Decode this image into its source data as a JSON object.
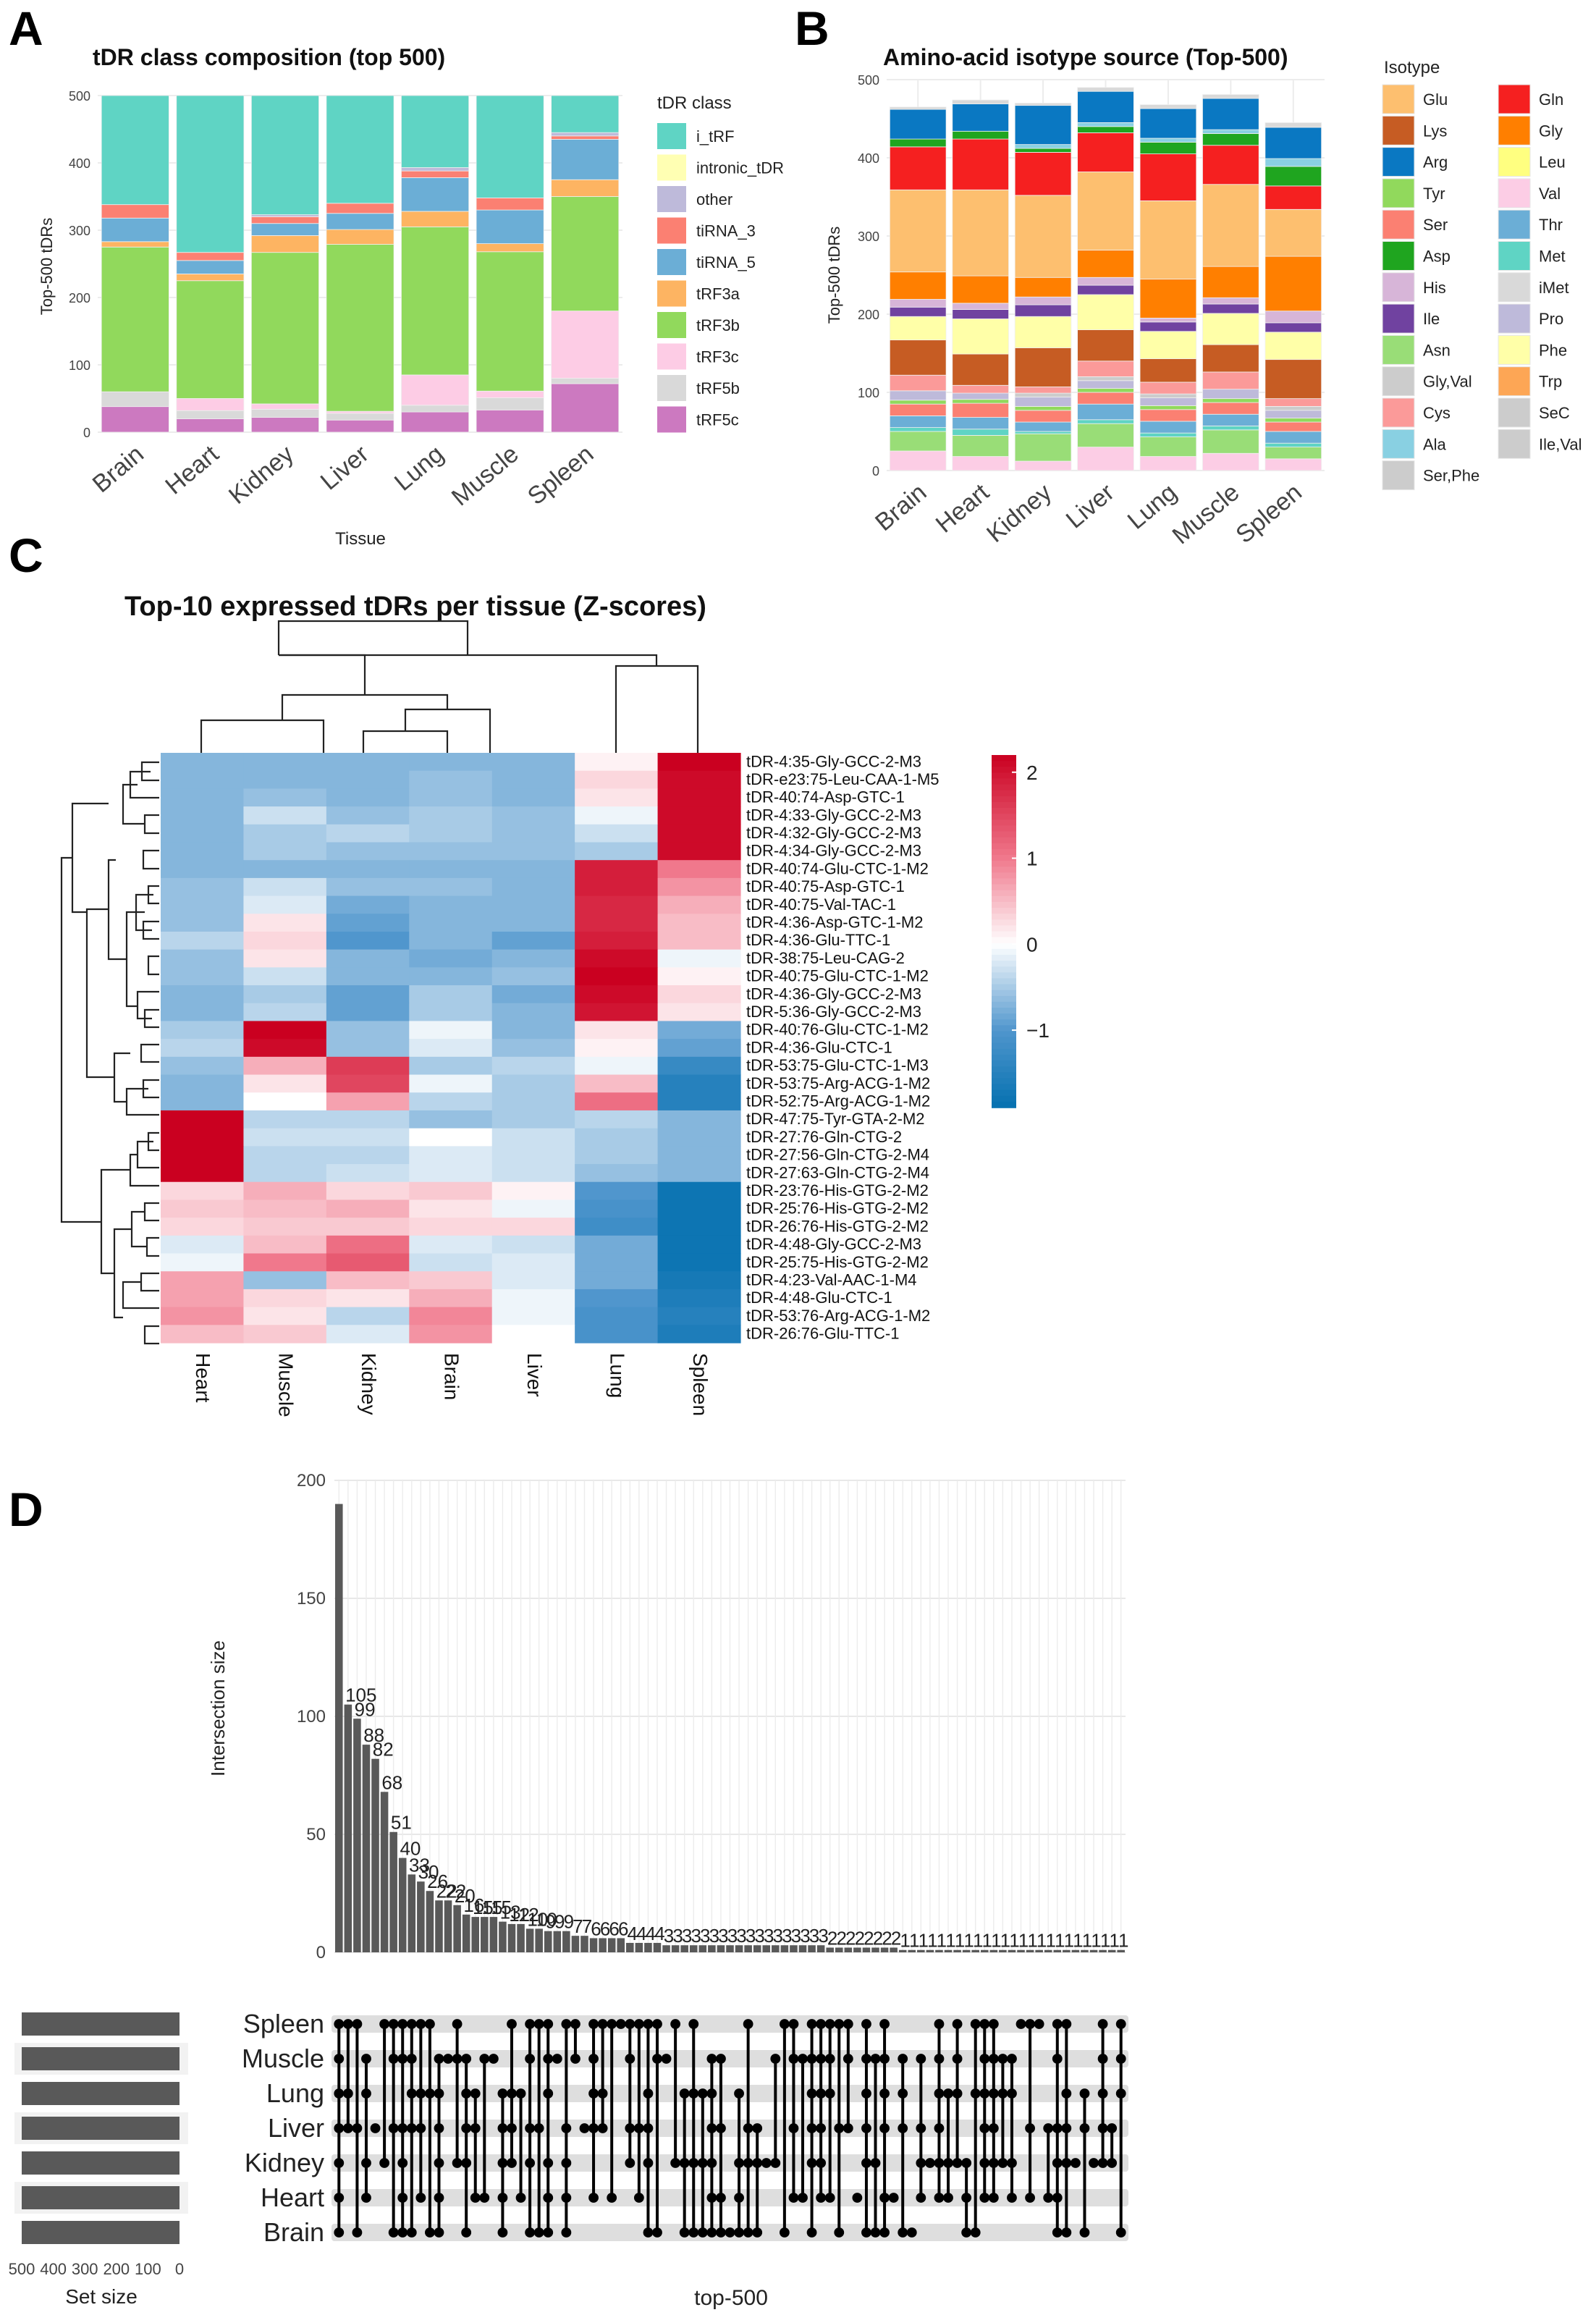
{
  "panels": {
    "a": "A",
    "b": "B",
    "c": "C",
    "d": "D"
  },
  "chart_data": [
    {
      "type": "bar",
      "id": "A",
      "title": "tDR class composition (top 500)",
      "xlabel": "Tissue",
      "ylabel": "Top-500 tDRs",
      "ylim": [
        0,
        500
      ],
      "yticks": [
        0,
        100,
        200,
        300,
        400,
        500
      ],
      "stacked": true,
      "legend_title": "tDR class",
      "legend_position": "right",
      "categories": [
        "Brain",
        "Heart",
        "Kidney",
        "Liver",
        "Lung",
        "Muscle",
        "Spleen"
      ],
      "series": [
        {
          "name": "tRF5c",
          "color": "#CC79C0",
          "values": [
            38,
            20,
            22,
            18,
            30,
            33,
            72
          ]
        },
        {
          "name": "tRF5b",
          "color": "#D9D9D9",
          "values": [
            22,
            12,
            12,
            10,
            10,
            18,
            8
          ]
        },
        {
          "name": "tRF3c",
          "color": "#FDCCE5",
          "values": [
            0,
            18,
            8,
            3,
            45,
            10,
            100
          ]
        },
        {
          "name": "tRF3b",
          "color": "#91D95C",
          "values": [
            215,
            175,
            225,
            248,
            220,
            207,
            170
          ]
        },
        {
          "name": "tRF3a",
          "color": "#FDB462",
          "values": [
            8,
            10,
            25,
            22,
            23,
            12,
            25
          ]
        },
        {
          "name": "tiRNA_5",
          "color": "#6BAED6",
          "values": [
            35,
            20,
            18,
            24,
            50,
            50,
            60
          ]
        },
        {
          "name": "tiRNA_3",
          "color": "#FB8072",
          "values": [
            20,
            12,
            10,
            15,
            10,
            18,
            5
          ]
        },
        {
          "name": "other",
          "color": "#BEBADA",
          "values": [
            0,
            0,
            3,
            0,
            5,
            0,
            5
          ]
        },
        {
          "name": "intronic_tDR",
          "color": "#FFFFB3",
          "values": [
            0,
            0,
            0,
            0,
            0,
            0,
            0
          ]
        },
        {
          "name": "i_tRF",
          "color": "#5FD4C4",
          "values": [
            162,
            233,
            177,
            160,
            107,
            152,
            55
          ]
        }
      ]
    },
    {
      "type": "bar",
      "id": "B",
      "title": "Amino-acid isotype source (Top-500)",
      "xlabel": "",
      "ylabel": "Top-500 tDRs",
      "ylim": [
        0,
        500
      ],
      "yticks": [
        0,
        100,
        200,
        300,
        400,
        500
      ],
      "stacked": true,
      "legend_title": "Isotype",
      "legend_position": "right",
      "categories": [
        "Brain",
        "Heart",
        "Kidney",
        "Liver",
        "Lung",
        "Muscle",
        "Spleen"
      ],
      "legend_order": [
        "Glu",
        "Lys",
        "Arg",
        "Tyr",
        "Ser",
        "Asp",
        "His",
        "Ile",
        "Asn",
        "Gly,Val",
        "Cys",
        "Ala",
        "Ser,Phe",
        "Gln",
        "Gly",
        "Leu",
        "Val",
        "Thr",
        "Met",
        "iMet",
        "Pro",
        "Phe",
        "Trp",
        "SeC",
        "Ile,Val"
      ],
      "series": [
        {
          "name": "Val",
          "color": "#FCCDE5",
          "values": [
            25,
            18,
            12,
            30,
            18,
            22,
            15
          ]
        },
        {
          "name": "Asn",
          "color": "#99DD77",
          "values": [
            25,
            27,
            35,
            30,
            25,
            30,
            15
          ]
        },
        {
          "name": "Met",
          "color": "#5FD4C4",
          "values": [
            5,
            8,
            3,
            5,
            5,
            5,
            5
          ]
        },
        {
          "name": "Thr",
          "color": "#6BAED6",
          "values": [
            15,
            15,
            12,
            20,
            15,
            15,
            15
          ]
        },
        {
          "name": "Ser",
          "color": "#FB8072",
          "values": [
            15,
            18,
            15,
            15,
            15,
            15,
            12
          ]
        },
        {
          "name": "Tyr",
          "color": "#91D95C",
          "values": [
            5,
            5,
            5,
            5,
            5,
            5,
            5
          ]
        },
        {
          "name": "Pro",
          "color": "#BEBADA",
          "values": [
            12,
            8,
            12,
            10,
            10,
            12,
            10
          ]
        },
        {
          "name": "Gly,Val",
          "color": "#CCCCCC",
          "values": [
            0,
            0,
            5,
            5,
            5,
            0,
            5
          ]
        },
        {
          "name": "Cys",
          "color": "#FB9A99",
          "values": [
            20,
            10,
            8,
            20,
            15,
            22,
            10
          ]
        },
        {
          "name": "Lys",
          "color": "#C65C23",
          "values": [
            45,
            40,
            50,
            40,
            30,
            35,
            50
          ]
        },
        {
          "name": "Phe",
          "color": "#FFFFA8",
          "values": [
            30,
            45,
            40,
            45,
            35,
            40,
            35
          ]
        },
        {
          "name": "Ile",
          "color": "#7042A0",
          "values": [
            12,
            12,
            15,
            12,
            12,
            12,
            12
          ]
        },
        {
          "name": "His",
          "color": "#D7B5D8",
          "values": [
            10,
            8,
            10,
            10,
            5,
            8,
            15
          ]
        },
        {
          "name": "Gly",
          "color": "#FF7F00",
          "values": [
            35,
            35,
            25,
            35,
            50,
            40,
            70
          ]
        },
        {
          "name": "Glu",
          "color": "#FDBF6F",
          "values": [
            105,
            110,
            105,
            100,
            100,
            105,
            60
          ]
        },
        {
          "name": "Gln",
          "color": "#F52020",
          "values": [
            55,
            65,
            55,
            50,
            60,
            50,
            30
          ]
        },
        {
          "name": "Asp",
          "color": "#1FA51F",
          "values": [
            10,
            10,
            5,
            8,
            15,
            15,
            25
          ]
        },
        {
          "name": "Ala",
          "color": "#89D0E2",
          "values": [
            0,
            0,
            5,
            5,
            5,
            5,
            10
          ]
        },
        {
          "name": "Arg",
          "color": "#0A78C2",
          "values": [
            38,
            35,
            50,
            40,
            38,
            40,
            40
          ]
        },
        {
          "name": "iMet",
          "color": "#D9D9D9",
          "values": [
            3,
            5,
            3,
            5,
            5,
            5,
            6
          ]
        }
      ]
    },
    {
      "type": "heatmap",
      "id": "C",
      "title": "Top-10 expressed tDRs per tissue (Z-scores)",
      "colorbar_ticks": [
        2,
        1,
        0,
        -1
      ],
      "colorbar_range": [
        -1.9,
        2.2
      ],
      "columns": [
        "Heart",
        "Muscle",
        "Kidney",
        "Brain",
        "Liver",
        "Lung",
        "Spleen"
      ],
      "rows": [
        "tDR-4:35-Gly-GCC-2-M3",
        "tDR-e23:75-Leu-CAA-1-M5",
        "tDR-40:74-Asp-GTC-1",
        "tDR-4:33-Gly-GCC-2-M3",
        "tDR-4:32-Gly-GCC-2-M3",
        "tDR-4:34-Gly-GCC-2-M3",
        "tDR-40:74-Glu-CTC-1-M2",
        "tDR-40:75-Asp-GTC-1",
        "tDR-40:75-Val-TAC-1",
        "tDR-4:36-Asp-GTC-1-M2",
        "tDR-4:36-Glu-TTC-1",
        "tDR-38:75-Leu-CAG-2",
        "tDR-40:75-Glu-CTC-1-M2",
        "tDR-4:36-Gly-GCC-2-M3",
        "tDR-5:36-Gly-GCC-2-M3",
        "tDR-40:76-Glu-CTC-1-M2",
        "tDR-4:36-Glu-CTC-1",
        "tDR-53:75-Glu-CTC-1-M3",
        "tDR-53:75-Arg-ACG-1-M2",
        "tDR-52:75-Arg-ACG-1-M2",
        "tDR-47:75-Tyr-GTA-2-M2",
        "tDR-27:76-Gln-CTG-2",
        "tDR-27:56-Gln-CTG-2-M4",
        "tDR-27:63-Gln-CTG-2-M4",
        "tDR-23:76-His-GTG-2-M2",
        "tDR-25:76-His-GTG-2-M2",
        "tDR-26:76-His-GTG-2-M2",
        "tDR-4:48-Gly-GCC-2-M3",
        "tDR-25:75-His-GTG-2-M2",
        "tDR-4:23-Val-AAC-1-M4",
        "tDR-4:48-Glu-CTC-1",
        "tDR-53:76-Arg-ACG-1-M2",
        "tDR-26:76-Glu-TTC-1"
      ],
      "values": [
        [
          -0.7,
          -0.7,
          -0.7,
          -0.7,
          -0.7,
          0.1,
          2.2
        ],
        [
          -0.7,
          -0.7,
          -0.7,
          -0.6,
          -0.7,
          0.3,
          2.1
        ],
        [
          -0.7,
          -0.6,
          -0.7,
          -0.6,
          -0.7,
          0.2,
          2.1
        ],
        [
          -0.7,
          -0.3,
          -0.6,
          -0.5,
          -0.6,
          -0.1,
          2.1
        ],
        [
          -0.7,
          -0.5,
          -0.4,
          -0.5,
          -0.6,
          -0.3,
          2.1
        ],
        [
          -0.7,
          -0.5,
          -0.6,
          -0.6,
          -0.6,
          -0.5,
          2.1
        ],
        [
          -0.7,
          -0.7,
          -0.7,
          -0.7,
          -0.7,
          1.9,
          1.0
        ],
        [
          -0.6,
          -0.3,
          -0.6,
          -0.6,
          -0.7,
          1.9,
          0.8
        ],
        [
          -0.6,
          -0.2,
          -0.8,
          -0.7,
          -0.7,
          1.8,
          0.6
        ],
        [
          -0.6,
          0.2,
          -0.9,
          -0.7,
          -0.7,
          1.8,
          0.5
        ],
        [
          -0.4,
          0.3,
          -1.0,
          -0.7,
          -0.9,
          1.9,
          0.5
        ],
        [
          -0.6,
          0.2,
          -0.7,
          -0.8,
          -0.7,
          2.1,
          -0.1
        ],
        [
          -0.6,
          -0.3,
          -0.7,
          -0.7,
          -0.6,
          2.2,
          0.1
        ],
        [
          -0.7,
          -0.5,
          -0.9,
          -0.5,
          -0.8,
          2.1,
          0.3
        ],
        [
          -0.7,
          -0.4,
          -0.9,
          -0.5,
          -0.7,
          2.0,
          0.2
        ],
        [
          -0.5,
          2.2,
          -0.6,
          -0.1,
          -0.7,
          0.2,
          -0.8
        ],
        [
          -0.4,
          2.1,
          -0.6,
          -0.2,
          -0.6,
          0.1,
          -0.9
        ],
        [
          -0.6,
          0.6,
          1.6,
          -0.5,
          -0.4,
          -0.1,
          -1.3
        ],
        [
          -0.7,
          0.2,
          1.5,
          -0.1,
          -0.5,
          0.5,
          -1.5
        ],
        [
          -0.7,
          0.0,
          0.7,
          -0.4,
          -0.5,
          1.1,
          -1.5
        ],
        [
          2.2,
          -0.4,
          -0.4,
          -0.6,
          -0.5,
          -0.4,
          -0.7
        ],
        [
          2.2,
          -0.3,
          -0.3,
          0.0,
          -0.3,
          -0.5,
          -0.7
        ],
        [
          2.2,
          -0.4,
          -0.4,
          -0.2,
          -0.3,
          -0.5,
          -0.7
        ],
        [
          2.2,
          -0.4,
          -0.3,
          -0.2,
          -0.3,
          -0.6,
          -0.7
        ],
        [
          0.3,
          0.6,
          0.3,
          0.4,
          0.1,
          -1.0,
          -1.8
        ],
        [
          0.4,
          0.5,
          0.6,
          0.2,
          -0.1,
          -1.1,
          -1.8
        ],
        [
          0.3,
          0.4,
          0.4,
          0.3,
          0.3,
          -1.2,
          -1.8
        ],
        [
          -0.2,
          0.5,
          1.1,
          -0.2,
          -0.3,
          -0.8,
          -1.8
        ],
        [
          -0.1,
          1.0,
          1.3,
          -0.3,
          -0.2,
          -0.8,
          -1.8
        ],
        [
          0.7,
          -0.6,
          0.5,
          0.4,
          -0.2,
          -0.8,
          -1.7
        ],
        [
          0.7,
          0.3,
          0.2,
          0.6,
          -0.1,
          -1.0,
          -1.6
        ],
        [
          0.8,
          0.2,
          -0.4,
          0.9,
          -0.1,
          -1.1,
          -1.5
        ],
        [
          0.5,
          0.4,
          -0.2,
          0.8,
          0.0,
          -1.1,
          -1.6
        ]
      ]
    },
    {
      "type": "bar",
      "id": "D",
      "subtype": "upset",
      "xlabel": "top-500",
      "ylabel": "Intersection size",
      "set_size_label": "Set size",
      "ylim": [
        0,
        200
      ],
      "yticks": [
        0,
        50,
        100,
        150,
        200
      ],
      "set_size_ticks": [
        500,
        400,
        300,
        200,
        100,
        0
      ],
      "sets": [
        "Spleen",
        "Muscle",
        "Lung",
        "Liver",
        "Kidney",
        "Heart",
        "Brain"
      ],
      "set_sizes": [
        500,
        500,
        500,
        500,
        500,
        500,
        500
      ],
      "intersection_sizes": [
        190,
        105,
        99,
        88,
        82,
        68,
        51,
        40,
        33,
        30,
        26,
        22,
        22,
        20,
        16,
        15,
        15,
        15,
        13,
        12,
        12,
        10,
        10,
        9,
        9,
        9,
        7,
        7,
        6,
        6,
        6,
        6,
        4,
        4,
        4,
        4,
        3,
        3,
        3,
        3,
        3,
        3,
        3,
        3,
        3,
        3,
        3,
        3,
        3,
        3,
        3,
        3,
        3,
        3,
        2,
        2,
        2,
        2,
        2,
        2,
        2,
        2,
        1,
        1,
        1,
        1,
        1,
        1,
        1,
        1,
        1,
        1,
        1,
        1,
        1,
        1,
        1,
        1,
        1,
        1,
        1,
        1,
        1,
        1,
        1,
        1,
        1
      ],
      "bar_labels": [
        "",
        "105",
        "99",
        "88",
        "82",
        "68",
        "51",
        "40",
        "33",
        "30",
        "26",
        "22",
        "22",
        "20",
        "16",
        "15",
        "15",
        "15",
        "13",
        "12",
        "12",
        "10",
        "10",
        "9",
        "9",
        "9",
        "7",
        "7",
        "6",
        "6",
        "6",
        "6",
        "4",
        "4",
        "4",
        "4",
        "3",
        "3",
        "3",
        "3",
        "3",
        "3",
        "3",
        "3",
        "3",
        "3",
        "3",
        "3",
        "3",
        "3",
        "3",
        "3",
        "3",
        "3",
        "2",
        "2",
        "2",
        "2",
        "2",
        "2",
        "2",
        "2",
        "1",
        "1",
        "1",
        "1",
        "1",
        "1",
        "1",
        "1",
        "1",
        "1",
        "1",
        "1",
        "1",
        "1",
        "1",
        "1",
        "1",
        "1",
        "1",
        "1",
        "1",
        "1",
        "1",
        "1",
        "1"
      ]
    }
  ]
}
